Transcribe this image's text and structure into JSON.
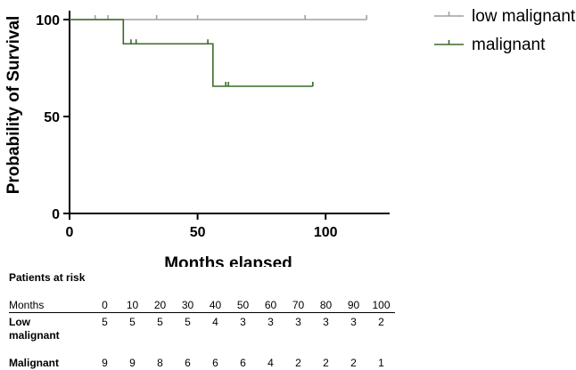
{
  "chart_data": {
    "type": "kaplan-meier",
    "xlabel": "Months elapsed",
    "ylabel": "Probability of Survival",
    "xlim": [
      0,
      125
    ],
    "ylim": [
      0,
      100
    ],
    "xticks": [
      0,
      50,
      100
    ],
    "yticks": [
      0,
      50,
      100
    ],
    "series": [
      {
        "name": "low malignant",
        "color": "#a0a0a0",
        "steps": [
          [
            0,
            100
          ],
          [
            116,
            100
          ]
        ],
        "censored": [
          [
            10,
            100
          ],
          [
            15,
            100
          ],
          [
            34,
            100
          ],
          [
            50,
            100
          ],
          [
            92,
            100
          ],
          [
            116,
            100
          ]
        ]
      },
      {
        "name": "malignant",
        "color": "#3a6b2a",
        "steps": [
          [
            0,
            100
          ],
          [
            21,
            100
          ],
          [
            21,
            87.5
          ],
          [
            56,
            87.5
          ],
          [
            56,
            65.6
          ],
          [
            95,
            65.6
          ]
        ],
        "censored": [
          [
            24,
            87.5
          ],
          [
            26,
            87.5
          ],
          [
            54,
            87.5
          ],
          [
            61,
            65.6
          ],
          [
            62,
            65.6
          ],
          [
            95,
            65.6
          ]
        ]
      }
    ]
  },
  "risk_table": {
    "title": "Patients at risk",
    "header_label": "Months",
    "months": [
      "0",
      "10",
      "20",
      "30",
      "40",
      "50",
      "60",
      "70",
      "80",
      "90",
      "100"
    ],
    "rows": [
      {
        "label_line1": "Low",
        "label_line2": "malignant",
        "values": [
          "5",
          "5",
          "5",
          "5",
          "4",
          "3",
          "3",
          "3",
          "3",
          "3",
          "2"
        ]
      },
      {
        "label_line1": "Malignant",
        "label_line2": "",
        "values": [
          "9",
          "9",
          "8",
          "6",
          "6",
          "6",
          "4",
          "2",
          "2",
          "2",
          "1"
        ]
      }
    ]
  }
}
